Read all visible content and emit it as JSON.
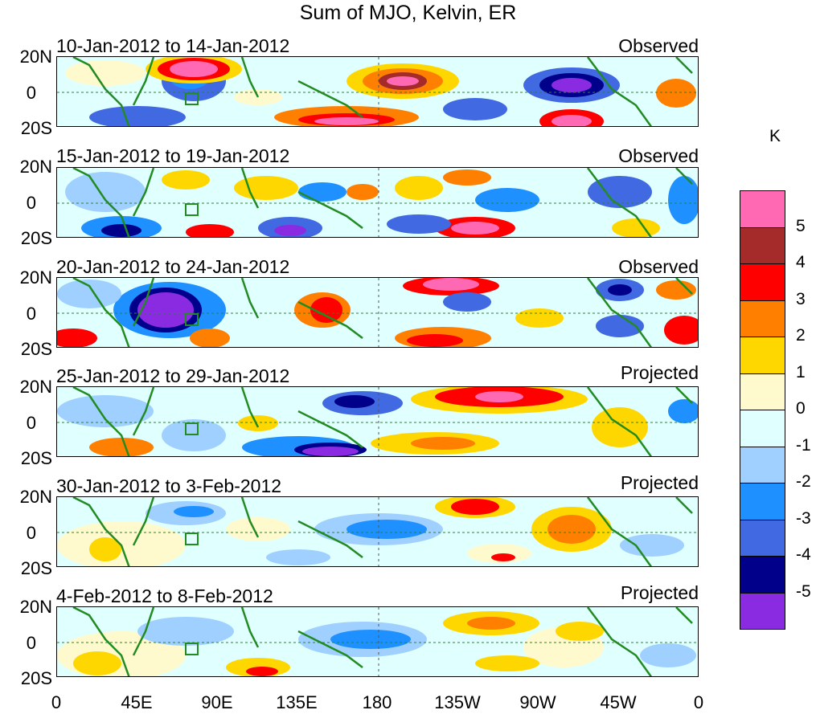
{
  "title": "Sum of MJO, Kelvin, ER",
  "unit_label": "K",
  "panels": [
    {
      "period": "10-Jan-2012 to 14-Jan-2012",
      "type": "Observed"
    },
    {
      "period": "15-Jan-2012 to 19-Jan-2012",
      "type": "Observed"
    },
    {
      "period": "20-Jan-2012 to 24-Jan-2012",
      "type": "Observed"
    },
    {
      "period": "25-Jan-2012 to 29-Jan-2012",
      "type": "Projected"
    },
    {
      "period": "30-Jan-2012 to 3-Feb-2012",
      "type": "Projected"
    },
    {
      "period": "4-Feb-2012 to 8-Feb-2012",
      "type": "Projected"
    }
  ],
  "y_ticks": [
    "20N",
    "0",
    "20S"
  ],
  "x_ticks": [
    "0",
    "45E",
    "90E",
    "135E",
    "180",
    "135W",
    "90W",
    "45W",
    "0"
  ],
  "colorbar": {
    "labels": [
      "5",
      "4",
      "3",
      "2",
      "1",
      "0",
      "-1",
      "-2",
      "-3",
      "-4",
      "-5"
    ],
    "colors": [
      "#ff69b4",
      "#a52a2a",
      "#ff0000",
      "#ff7f00",
      "#ffd700",
      "#fffacd",
      "#e0ffff",
      "#a0d0ff",
      "#1e90ff",
      "#4169e1",
      "#00008b",
      "#8a2be2"
    ]
  },
  "colors": {
    "coast": "#228b22",
    "zero_line": "#228b22"
  }
}
